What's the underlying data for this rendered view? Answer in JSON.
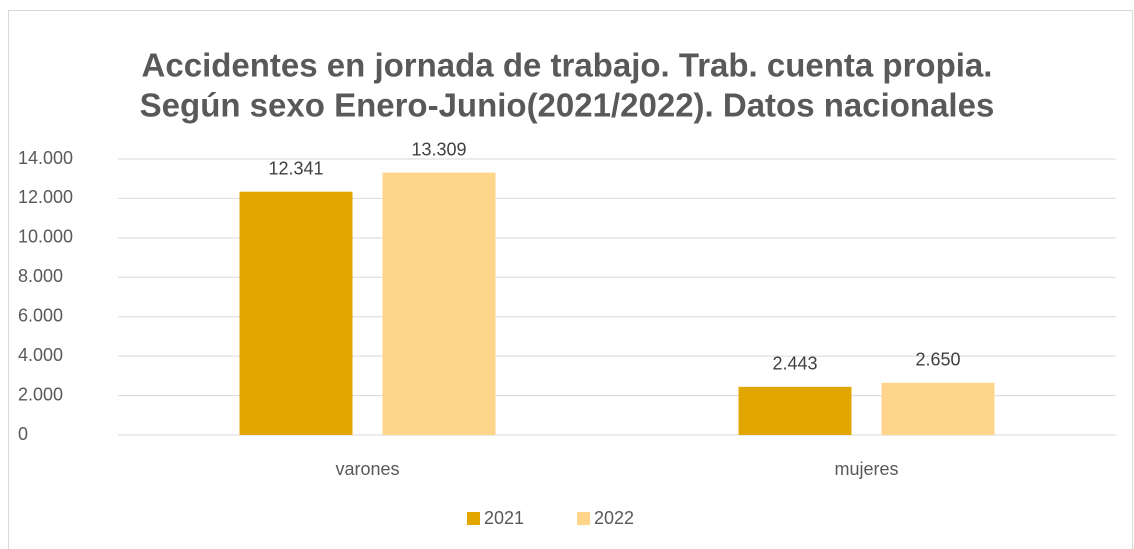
{
  "chart_data": {
    "type": "bar",
    "title": [
      "Accidentes en jornada de trabajo. Trab. cuenta propia.",
      "Según sexo Enero-Junio(2021/2022). Datos nacionales"
    ],
    "categories": [
      "varones",
      "mujeres"
    ],
    "series": [
      {
        "name": "2021",
        "color": "#e2a600",
        "values": [
          12341,
          2443
        ],
        "value_labels": [
          "12.341",
          "2.443"
        ]
      },
      {
        "name": "2022",
        "color": "#fed58a",
        "values": [
          13309,
          2650
        ],
        "value_labels": [
          "13.309",
          "2.650"
        ]
      }
    ],
    "ylim": [
      0,
      14000
    ],
    "yticks": [
      0,
      {
        "value": 2000,
        "label": "2.000"
      },
      {
        "value": 4000,
        "label": "4.000"
      },
      {
        "value": 6000,
        "label": "6.000"
      },
      {
        "value": 8000,
        "label": "8.000"
      },
      {
        "value": 10000,
        "label": "10.000"
      },
      {
        "value": 12000,
        "label": "12.000"
      },
      {
        "value": 14000,
        "label": "14.000"
      }
    ],
    "grid": true,
    "legend": "bottom"
  }
}
